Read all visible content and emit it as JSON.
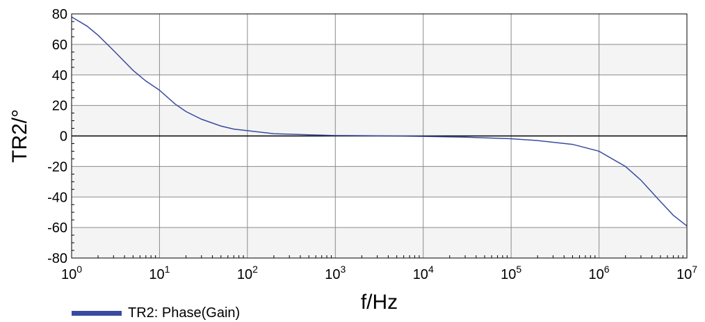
{
  "chart_data": {
    "type": "line",
    "xlabel": "f/Hz",
    "ylabel": "TR2/°",
    "x_scale": "log",
    "xlim": [
      1,
      10000000
    ],
    "ylim": [
      -80,
      80
    ],
    "x_ticks": [
      {
        "base": "10",
        "exp": "0"
      },
      {
        "base": "10",
        "exp": "1"
      },
      {
        "base": "10",
        "exp": "2"
      },
      {
        "base": "10",
        "exp": "3"
      },
      {
        "base": "10",
        "exp": "4"
      },
      {
        "base": "10",
        "exp": "5"
      },
      {
        "base": "10",
        "exp": "6"
      },
      {
        "base": "10",
        "exp": "7"
      }
    ],
    "y_ticks": [
      "80",
      "60",
      "40",
      "20",
      "0",
      "-20",
      "-40",
      "-60",
      "-80"
    ],
    "grid": true,
    "legend_position": "bottom-left",
    "series": [
      {
        "name": "TR2: Phase(Gain)",
        "color": "#3a4aa0",
        "x": [
          1,
          1.5,
          2,
          3,
          5,
          7,
          10,
          15,
          20,
          30,
          50,
          70,
          100,
          200,
          500,
          1000,
          3000,
          10000,
          30000,
          100000,
          200000,
          500000,
          1000000,
          2000000,
          3000000,
          5000000,
          7000000,
          10000000
        ],
        "y": [
          78,
          72,
          66,
          56,
          43,
          36,
          30,
          21,
          16,
          11,
          6.5,
          4.5,
          3.5,
          1.5,
          0.8,
          0.3,
          0.1,
          -0.3,
          -0.8,
          -1.8,
          -3,
          -5.5,
          -10,
          -20,
          -29,
          -43,
          -52,
          -59
        ]
      }
    ]
  }
}
